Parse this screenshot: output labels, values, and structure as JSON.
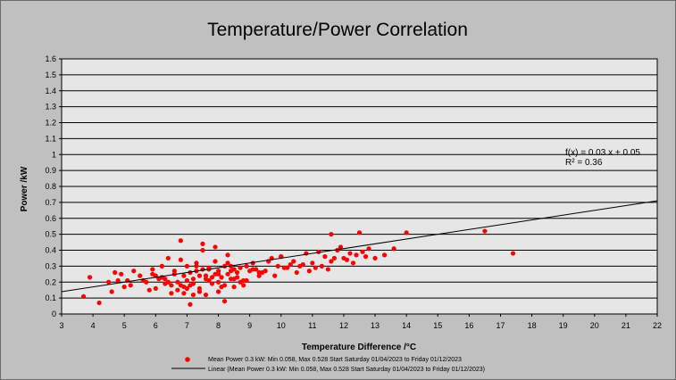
{
  "colors": {
    "background": "#c0c0c0",
    "plot_area": "#e6e6e6",
    "points": "#ff0000",
    "trendline": "#000000",
    "grid": "#000000"
  },
  "chart_data": {
    "type": "scatter",
    "title": "Temperature/Power Correlation",
    "xlabel": "Temperature Difference /°C",
    "ylabel": "Power /kW",
    "xlim": [
      3,
      22
    ],
    "ylim": [
      0,
      1.6
    ],
    "x_ticks": [
      "3",
      "4",
      "5",
      "6",
      "7",
      "8",
      "9",
      "10",
      "11",
      "12",
      "13",
      "14",
      "15",
      "16",
      "17",
      "18",
      "19",
      "20",
      "21",
      "22"
    ],
    "y_ticks": [
      "0",
      "0.1",
      "0.2",
      "0.3",
      "0.4",
      "0.5",
      "0.6",
      "0.7",
      "0.8",
      "0.9",
      "1",
      "1.1",
      "1.2",
      "1.3",
      "1.4",
      "1.5",
      "1.6"
    ],
    "grid": "horizontal",
    "equation_line1": "f(x) = 0.03 x + 0.05",
    "equation_line2": "R² = 0.36",
    "trendline": {
      "slope": 0.03,
      "intercept": 0.05
    },
    "legend_position": "bottom",
    "series": [
      {
        "name": "Mean Power 0.3 kW: Min 0.058, Max 0.528 Start Saturday 01/04/2023 to Friday 01/12/2023",
        "x": [
          3.7,
          3.9,
          4.2,
          4.6,
          4.7,
          4.8,
          4.9,
          5.0,
          5.2,
          5.3,
          5.5,
          5.7,
          5.8,
          5.9,
          6.0,
          6.1,
          6.2,
          6.3,
          6.4,
          6.5,
          6.6,
          6.7,
          6.8,
          6.9,
          7.0,
          7.1,
          7.2,
          7.3,
          7.4,
          7.5,
          7.6,
          7.7,
          7.8,
          7.9,
          8.0,
          8.1,
          8.2,
          8.3,
          8.4,
          8.5,
          8.6,
          8.7,
          8.8,
          8.9,
          9.0,
          9.1,
          9.3,
          9.5,
          9.7,
          9.9,
          10.0,
          10.2,
          10.4,
          10.6,
          10.8,
          11.0,
          11.2,
          11.4,
          11.6,
          11.8,
          12.0,
          12.2,
          12.4,
          12.6,
          12.8,
          13.0,
          13.3,
          13.6,
          14.0,
          16.5,
          17.4,
          5.9,
          6.3,
          6.8,
          7.1,
          7.4,
          7.7,
          8.0,
          8.3,
          8.6,
          9.2,
          9.8,
          10.3,
          10.9,
          11.5,
          12.1,
          12.7,
          4.5,
          5.6,
          6.0,
          6.6,
          7.0,
          7.3,
          7.6,
          7.9,
          8.2,
          8.5,
          8.9,
          9.4,
          10.1,
          10.7,
          11.3,
          11.7,
          6.4,
          6.9,
          7.2,
          7.5,
          7.8,
          8.1,
          8.4,
          8.7,
          6.7,
          7.0,
          7.3,
          7.6,
          8.0,
          8.2,
          8.5,
          9.1,
          9.6,
          10.5,
          11.1,
          11.9,
          12.3,
          5.1,
          6.2,
          6.5,
          6.9,
          7.2,
          7.4,
          7.7,
          8.0,
          8.3,
          8.8,
          9.3,
          10.0,
          7.1,
          7.9,
          8.4,
          6.8,
          7.5,
          11.6,
          12.5
        ],
        "y": [
          0.11,
          0.23,
          0.07,
          0.14,
          0.26,
          0.21,
          0.25,
          0.17,
          0.18,
          0.27,
          0.24,
          0.2,
          0.15,
          0.28,
          0.16,
          0.22,
          0.3,
          0.19,
          0.35,
          0.18,
          0.25,
          0.2,
          0.34,
          0.13,
          0.3,
          0.18,
          0.22,
          0.27,
          0.16,
          0.4,
          0.24,
          0.28,
          0.19,
          0.33,
          0.27,
          0.23,
          0.3,
          0.37,
          0.22,
          0.17,
          0.26,
          0.29,
          0.21,
          0.3,
          0.27,
          0.32,
          0.24,
          0.27,
          0.35,
          0.3,
          0.36,
          0.29,
          0.33,
          0.3,
          0.38,
          0.32,
          0.39,
          0.36,
          0.33,
          0.4,
          0.35,
          0.38,
          0.37,
          0.39,
          0.41,
          0.35,
          0.37,
          0.41,
          0.51,
          0.52,
          0.38,
          0.25,
          0.22,
          0.18,
          0.26,
          0.14,
          0.29,
          0.2,
          0.32,
          0.23,
          0.28,
          0.24,
          0.31,
          0.27,
          0.28,
          0.34,
          0.36,
          0.2,
          0.21,
          0.24,
          0.27,
          0.16,
          0.3,
          0.22,
          0.25,
          0.18,
          0.28,
          0.21,
          0.26,
          0.29,
          0.31,
          0.3,
          0.35,
          0.2,
          0.24,
          0.19,
          0.28,
          0.23,
          0.17,
          0.27,
          0.2,
          0.15,
          0.21,
          0.32,
          0.12,
          0.25,
          0.08,
          0.22,
          0.28,
          0.33,
          0.26,
          0.29,
          0.42,
          0.32,
          0.21,
          0.23,
          0.13,
          0.17,
          0.12,
          0.24,
          0.21,
          0.14,
          0.25,
          0.18,
          0.26,
          0.36,
          0.06,
          0.42,
          0.3,
          0.46,
          0.44,
          0.5,
          0.51
        ]
      },
      {
        "name": "Linear (Mean Power 0.3 kW: Min 0.058, Max 0.528 Start Saturday 01/04/2023 to Friday 01/12/2023)"
      }
    ]
  }
}
